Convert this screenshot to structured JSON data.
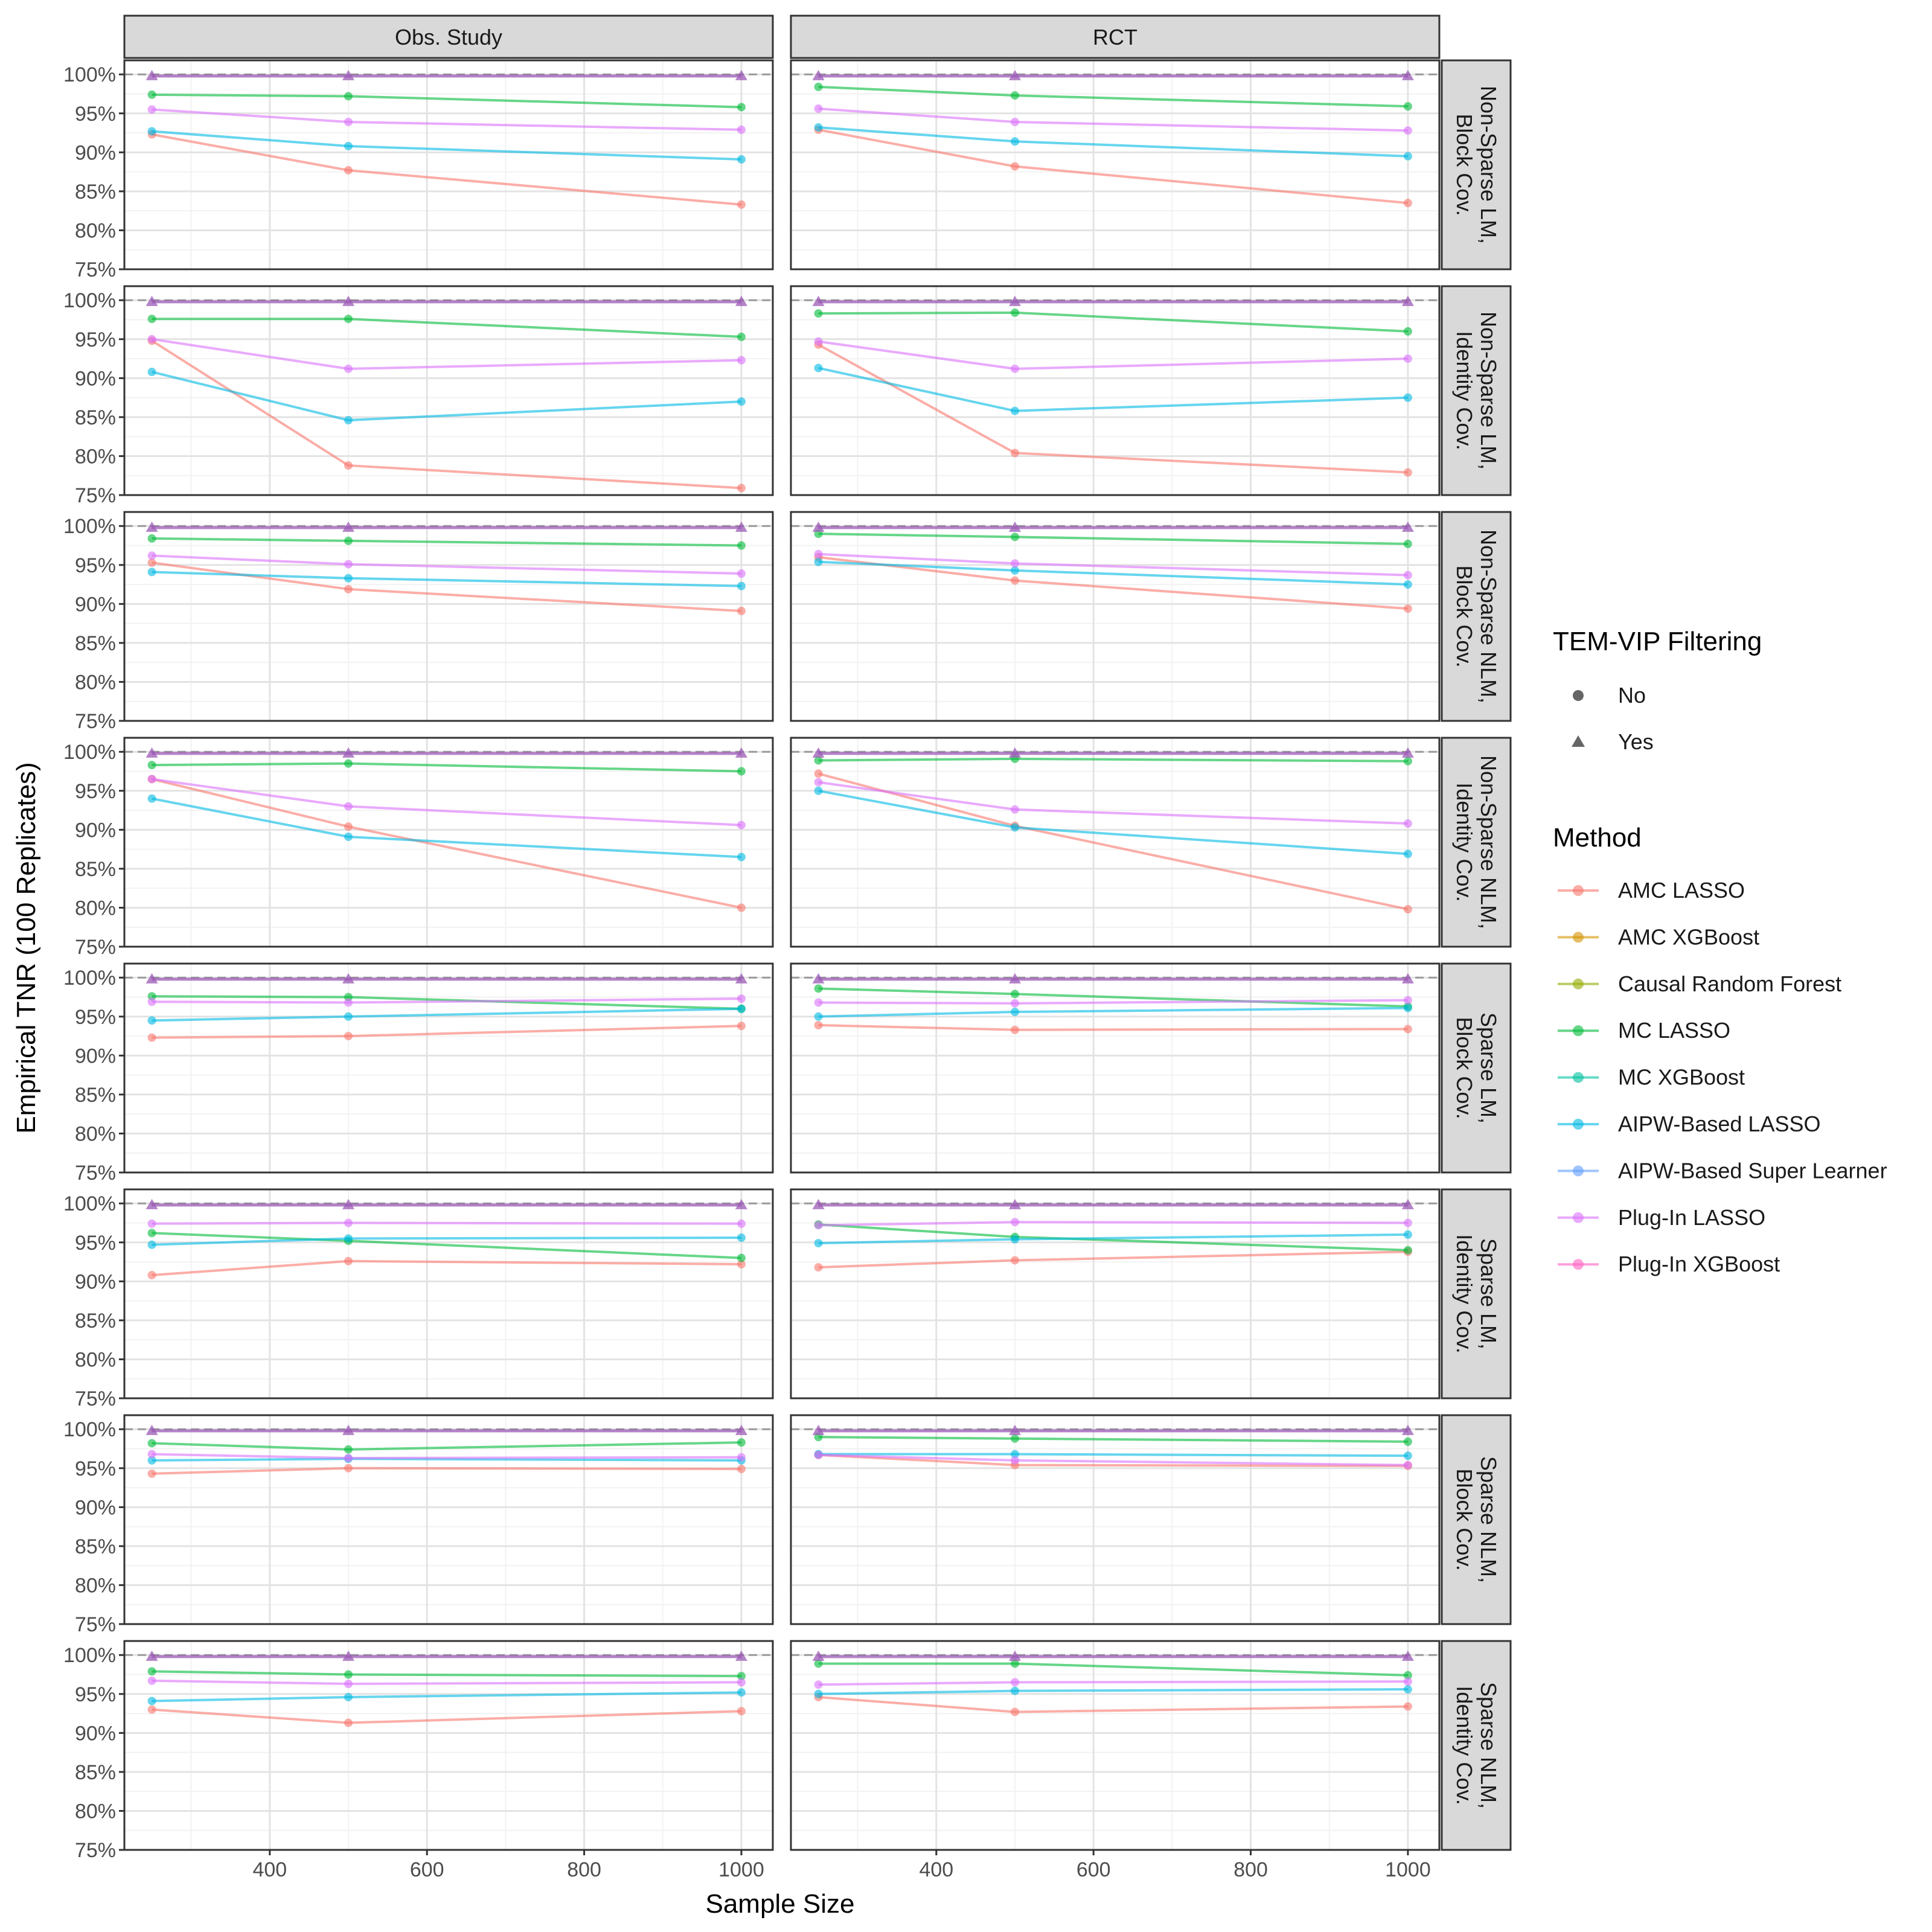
{
  "chart_data": {
    "type": "line",
    "title": "",
    "xlabel": "Sample Size",
    "ylabel": "Empirical TNR (100 Replicates)",
    "xlim": [
      215,
      1040
    ],
    "ylim": [
      75,
      101.8
    ],
    "x_ticks": [
      400,
      600,
      800,
      1000
    ],
    "x_tick_labels": [
      "400",
      "600",
      "800",
      "1000"
    ],
    "y_ticks": [
      75,
      80,
      85,
      90,
      95,
      100
    ],
    "y_tick_labels": [
      "75%",
      "80%",
      "85%",
      "90%",
      "95%",
      "100%"
    ],
    "reference_line": 100,
    "x": [
      250,
      500,
      1000
    ],
    "columns": [
      "Obs. Study",
      "RCT"
    ],
    "rows": [
      "Non-Sparse LM,\nBlock Cov.",
      "Non-Sparse LM,\nIdentity Cov.",
      "Non-Sparse NLM,\nBlock Cov.",
      "Non-Sparse NLM,\nIdentity Cov.",
      "Sparse LM,\nBlock Cov.",
      "Sparse LM,\nIdentity Cov.",
      "Sparse NLM,\nBlock Cov.",
      "Sparse NLM,\nIdentity Cov."
    ],
    "legend_filter": {
      "title": "TEM-VIP Filtering",
      "items": [
        {
          "label": "No",
          "shape": "circle"
        },
        {
          "label": "Yes",
          "shape": "triangle"
        }
      ]
    },
    "legend_method": {
      "title": "Method",
      "items": [
        {
          "label": "AMC LASSO",
          "color": "#F8766D"
        },
        {
          "label": "AMC XGBoost",
          "color": "#D39200"
        },
        {
          "label": "Causal Random Forest",
          "color": "#93AA00"
        },
        {
          "label": "MC LASSO",
          "color": "#00BA38"
        },
        {
          "label": "MC XGBoost",
          "color": "#00C19F"
        },
        {
          "label": "AIPW-Based LASSO",
          "color": "#00B9E3"
        },
        {
          "label": "AIPW-Based Super Learner",
          "color": "#619CFF"
        },
        {
          "label": "Plug-In LASSO",
          "color": "#DB72FB"
        },
        {
          "label": "Plug-In XGBoost",
          "color": "#FF61C3"
        }
      ]
    },
    "filtered_series_value": 99.8,
    "panels": [
      {
        "row": 0,
        "col": 0,
        "series": [
          {
            "name": "AMC LASSO",
            "values": [
              92.3,
              87.7,
              83.3
            ]
          },
          {
            "name": "MC LASSO",
            "values": [
              97.4,
              97.2,
              95.8
            ]
          },
          {
            "name": "AIPW-Based LASSO",
            "values": [
              92.7,
              90.8,
              89.1
            ]
          },
          {
            "name": "Plug-In LASSO",
            "values": [
              95.5,
              93.9,
              92.9
            ]
          }
        ]
      },
      {
        "row": 0,
        "col": 1,
        "series": [
          {
            "name": "AMC LASSO",
            "values": [
              92.9,
              88.2,
              83.5
            ]
          },
          {
            "name": "MC LASSO",
            "values": [
              98.4,
              97.3,
              95.9
            ]
          },
          {
            "name": "AIPW-Based LASSO",
            "values": [
              93.2,
              91.4,
              89.5
            ]
          },
          {
            "name": "Plug-In LASSO",
            "values": [
              95.6,
              93.9,
              92.8
            ]
          }
        ]
      },
      {
        "row": 1,
        "col": 0,
        "series": [
          {
            "name": "AMC LASSO",
            "values": [
              94.8,
              78.8,
              75.9
            ]
          },
          {
            "name": "MC LASSO",
            "values": [
              97.6,
              97.6,
              95.3
            ]
          },
          {
            "name": "AIPW-Based LASSO",
            "values": [
              90.8,
              84.6,
              87.0
            ]
          },
          {
            "name": "Plug-In LASSO",
            "values": [
              95.0,
              91.2,
              92.3
            ]
          }
        ]
      },
      {
        "row": 1,
        "col": 1,
        "series": [
          {
            "name": "AMC LASSO",
            "values": [
              94.3,
              80.4,
              77.9
            ]
          },
          {
            "name": "MC LASSO",
            "values": [
              98.3,
              98.4,
              96.0
            ]
          },
          {
            "name": "AIPW-Based LASSO",
            "values": [
              91.3,
              85.8,
              87.5
            ]
          },
          {
            "name": "Plug-In LASSO",
            "values": [
              94.7,
              91.2,
              92.5
            ]
          }
        ]
      },
      {
        "row": 2,
        "col": 0,
        "series": [
          {
            "name": "AMC LASSO",
            "values": [
              95.3,
              91.9,
              89.1
            ]
          },
          {
            "name": "MC LASSO",
            "values": [
              98.4,
              98.1,
              97.5
            ]
          },
          {
            "name": "AIPW-Based LASSO",
            "values": [
              94.1,
              93.3,
              92.3
            ]
          },
          {
            "name": "Plug-In LASSO",
            "values": [
              96.2,
              95.1,
              93.9
            ]
          }
        ]
      },
      {
        "row": 2,
        "col": 1,
        "series": [
          {
            "name": "AMC LASSO",
            "values": [
              96.0,
              93.0,
              89.4
            ]
          },
          {
            "name": "MC LASSO",
            "values": [
              99.0,
              98.6,
              97.7
            ]
          },
          {
            "name": "AIPW-Based LASSO",
            "values": [
              95.4,
              94.3,
              92.5
            ]
          },
          {
            "name": "Plug-In LASSO",
            "values": [
              96.4,
              95.2,
              93.7
            ]
          }
        ]
      },
      {
        "row": 3,
        "col": 0,
        "series": [
          {
            "name": "AMC LASSO",
            "values": [
              96.5,
              90.4,
              80.0
            ]
          },
          {
            "name": "MC LASSO",
            "values": [
              98.3,
              98.5,
              97.5
            ]
          },
          {
            "name": "AIPW-Based LASSO",
            "values": [
              94.0,
              89.1,
              86.5
            ]
          },
          {
            "name": "Plug-In LASSO",
            "values": [
              96.5,
              93.0,
              90.6
            ]
          }
        ]
      },
      {
        "row": 3,
        "col": 1,
        "series": [
          {
            "name": "AMC LASSO",
            "values": [
              97.2,
              90.5,
              79.8
            ]
          },
          {
            "name": "MC LASSO",
            "values": [
              98.9,
              99.1,
              98.8
            ]
          },
          {
            "name": "AIPW-Based LASSO",
            "values": [
              95.0,
              90.3,
              86.9
            ]
          },
          {
            "name": "Plug-In LASSO",
            "values": [
              96.1,
              92.6,
              90.8
            ]
          }
        ]
      },
      {
        "row": 4,
        "col": 0,
        "series": [
          {
            "name": "AMC LASSO",
            "values": [
              92.3,
              92.5,
              93.8
            ]
          },
          {
            "name": "MC LASSO",
            "values": [
              97.6,
              97.5,
              96.0
            ]
          },
          {
            "name": "AIPW-Based LASSO",
            "values": [
              94.5,
              95.0,
              96.0
            ]
          },
          {
            "name": "Plug-In LASSO",
            "values": [
              96.9,
              96.8,
              97.3
            ]
          }
        ]
      },
      {
        "row": 4,
        "col": 1,
        "series": [
          {
            "name": "AMC LASSO",
            "values": [
              93.9,
              93.3,
              93.4
            ]
          },
          {
            "name": "MC LASSO",
            "values": [
              98.6,
              97.9,
              96.3
            ]
          },
          {
            "name": "AIPW-Based LASSO",
            "values": [
              95.0,
              95.6,
              96.1
            ]
          },
          {
            "name": "Plug-In LASSO",
            "values": [
              96.8,
              96.7,
              97.1
            ]
          }
        ]
      },
      {
        "row": 5,
        "col": 0,
        "series": [
          {
            "name": "AMC LASSO",
            "values": [
              90.8,
              92.6,
              92.2
            ]
          },
          {
            "name": "MC LASSO",
            "values": [
              96.2,
              95.2,
              93.0
            ]
          },
          {
            "name": "AIPW-Based LASSO",
            "values": [
              94.7,
              95.5,
              95.6
            ]
          },
          {
            "name": "Plug-In LASSO",
            "values": [
              97.4,
              97.5,
              97.4
            ]
          }
        ]
      },
      {
        "row": 5,
        "col": 1,
        "series": [
          {
            "name": "AMC LASSO",
            "values": [
              91.8,
              92.7,
              93.8
            ]
          },
          {
            "name": "MC LASSO",
            "values": [
              97.3,
              95.7,
              94.0
            ]
          },
          {
            "name": "AIPW-Based LASSO",
            "values": [
              94.9,
              95.4,
              96.0
            ]
          },
          {
            "name": "Plug-In LASSO",
            "values": [
              97.2,
              97.6,
              97.5
            ]
          }
        ]
      },
      {
        "row": 6,
        "col": 0,
        "series": [
          {
            "name": "AMC LASSO",
            "values": [
              94.3,
              95.0,
              94.9
            ]
          },
          {
            "name": "MC LASSO",
            "values": [
              98.2,
              97.4,
              98.3
            ]
          },
          {
            "name": "AIPW-Based LASSO",
            "values": [
              96.0,
              96.2,
              96.0
            ]
          },
          {
            "name": "Plug-In LASSO",
            "values": [
              96.8,
              96.3,
              96.4
            ]
          }
        ]
      },
      {
        "row": 6,
        "col": 1,
        "series": [
          {
            "name": "AMC LASSO",
            "values": [
              96.7,
              95.4,
              95.3
            ]
          },
          {
            "name": "MC LASSO",
            "values": [
              99.0,
              98.8,
              98.4
            ]
          },
          {
            "name": "AIPW-Based LASSO",
            "values": [
              96.8,
              96.8,
              96.6
            ]
          },
          {
            "name": "Plug-In LASSO",
            "values": [
              96.7,
              96.0,
              95.4
            ]
          }
        ]
      },
      {
        "row": 7,
        "col": 0,
        "series": [
          {
            "name": "AMC LASSO",
            "values": [
              93.0,
              91.3,
              92.8
            ]
          },
          {
            "name": "MC LASSO",
            "values": [
              97.9,
              97.5,
              97.3
            ]
          },
          {
            "name": "AIPW-Based LASSO",
            "values": [
              94.1,
              94.6,
              95.2
            ]
          },
          {
            "name": "Plug-In LASSO",
            "values": [
              96.7,
              96.3,
              96.5
            ]
          }
        ]
      },
      {
        "row": 7,
        "col": 1,
        "series": [
          {
            "name": "AMC LASSO",
            "values": [
              94.6,
              92.7,
              93.4
            ]
          },
          {
            "name": "MC LASSO",
            "values": [
              98.9,
              98.9,
              97.4
            ]
          },
          {
            "name": "AIPW-Based LASSO",
            "values": [
              95.0,
              95.4,
              95.6
            ]
          },
          {
            "name": "Plug-In LASSO",
            "values": [
              96.2,
              96.5,
              96.6
            ]
          }
        ]
      }
    ]
  }
}
